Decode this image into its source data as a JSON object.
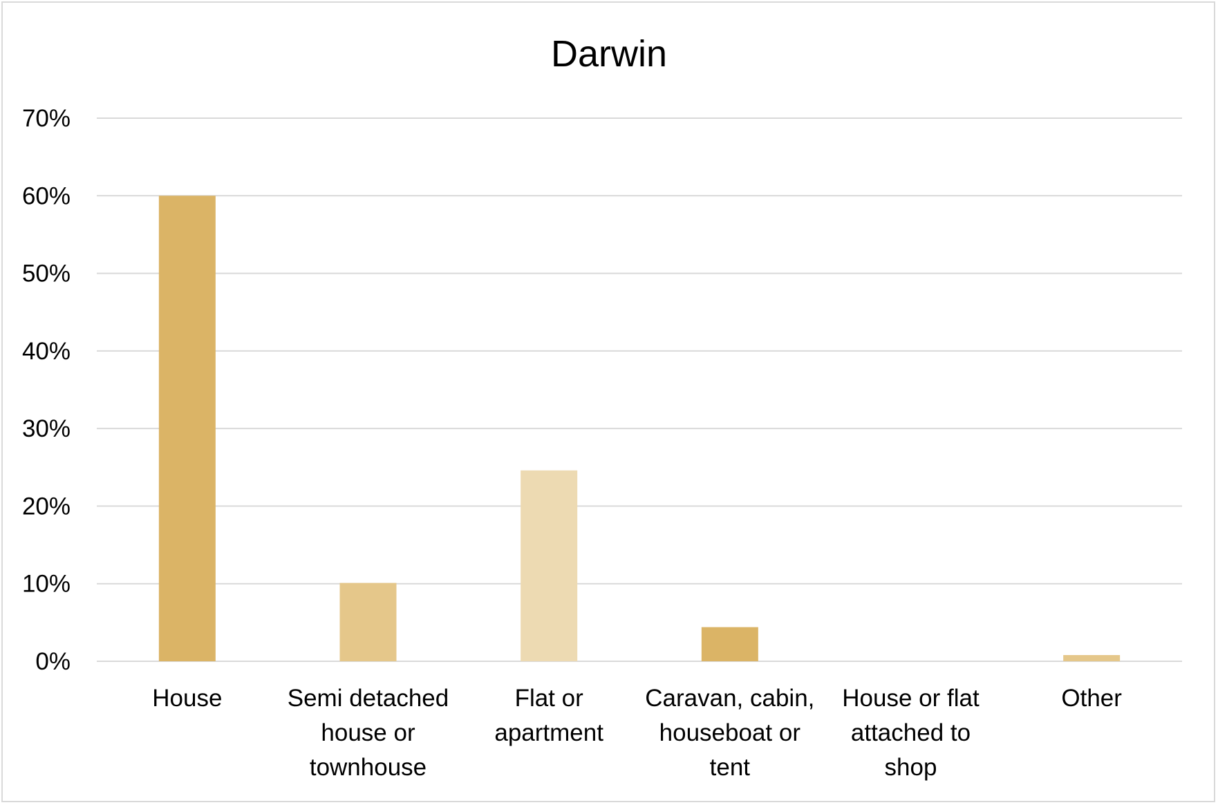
{
  "chart_data": {
    "type": "bar",
    "title": "Darwin",
    "xlabel": "",
    "ylabel": "",
    "ylim": [
      0,
      70
    ],
    "y_ticks": [
      "0%",
      "10%",
      "20%",
      "30%",
      "40%",
      "50%",
      "60%",
      "70%"
    ],
    "y_tick_values": [
      0,
      10,
      20,
      30,
      40,
      50,
      60,
      70
    ],
    "grid": true,
    "legend": "none",
    "categories": [
      [
        "House"
      ],
      [
        "Semi detached",
        "house or",
        "townhouse"
      ],
      [
        "Flat or",
        "apartment"
      ],
      [
        "Caravan, cabin,",
        "houseboat or",
        "tent"
      ],
      [
        "House or flat",
        "attached to",
        "shop"
      ],
      [
        "Other"
      ]
    ],
    "values": [
      60,
      10.1,
      24.6,
      4.4,
      0,
      0.8
    ],
    "bar_colors": [
      "#dbb466",
      "#e5c78a",
      "#eddab2",
      "#dbb466",
      "#dbb466",
      "#e5c78a"
    ],
    "grid_color": "#d9d9d9"
  }
}
